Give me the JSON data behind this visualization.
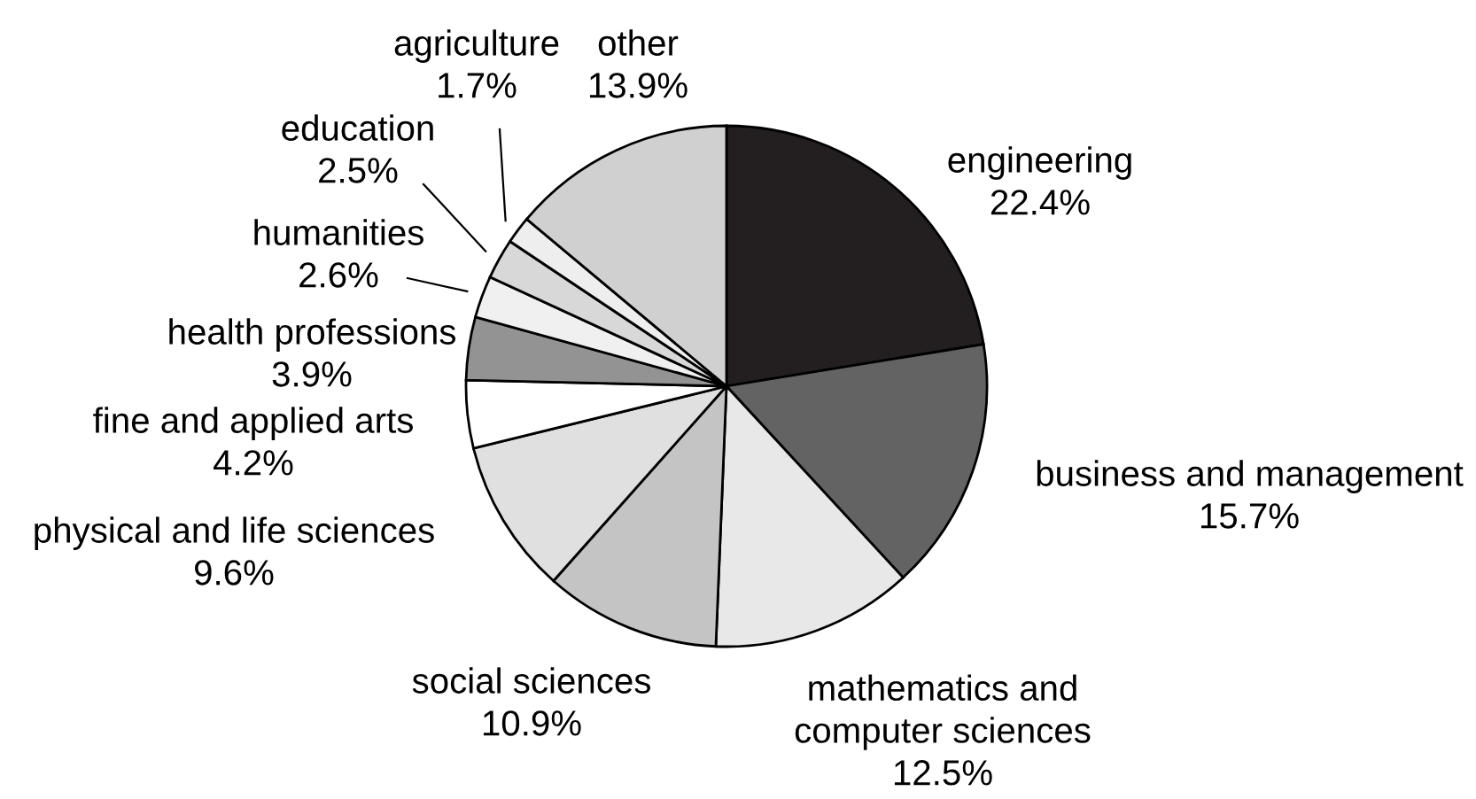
{
  "chart_data": {
    "type": "pie",
    "categories": [
      "engineering",
      "business and management",
      "mathematics and computer sciences",
      "social sciences",
      "physical and life sciences",
      "fine and applied arts",
      "health professions",
      "humanities",
      "education",
      "agriculture",
      "other"
    ],
    "values": [
      22.4,
      15.7,
      12.5,
      10.9,
      9.6,
      4.2,
      3.9,
      2.6,
      2.5,
      1.7,
      13.9
    ],
    "value_labels": [
      "22.4%",
      "15.7%",
      "12.5%",
      "10.9%",
      "9.6%",
      "4.2%",
      "3.9%",
      "2.6%",
      "2.5%",
      "1.7%",
      "13.9%"
    ],
    "colors": [
      "#231f20",
      "#636363",
      "#e8e8e8",
      "#c4c4c4",
      "#e0e0e0",
      "#ffffff",
      "#939393",
      "#f0f0f0",
      "#d8d8d8",
      "#eeeeee",
      "#d0d0d0"
    ]
  }
}
